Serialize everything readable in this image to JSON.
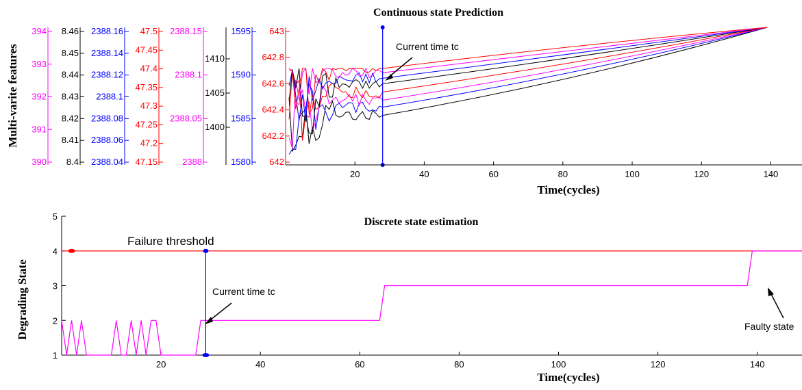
{
  "chart_data": [
    {
      "type": "line",
      "title": "Continuous state Prediction",
      "xlabel": "Time(cycles)",
      "ylabel": "Multi-varite features",
      "xlim": [
        0,
        149
      ],
      "x_ticks": [
        20,
        40,
        60,
        80,
        100,
        120,
        140
      ],
      "grid": false,
      "annotation": "Current time tc",
      "current_time": 28,
      "end_point": 139,
      "axes": [
        {
          "color": "#ff00ff",
          "ticks": [
            "394",
            "393",
            "392",
            "391",
            "390"
          ]
        },
        {
          "color": "#000000",
          "ticks": [
            "8.46",
            "8.45",
            "8.44",
            "8.43",
            "8.42",
            "8.41",
            "8.4"
          ]
        },
        {
          "color": "#0000ff",
          "ticks": [
            "2388.16",
            "2388.14",
            "2388.12",
            "2388.1",
            "2388.08",
            "2388.06",
            "2388.04"
          ]
        },
        {
          "color": "#ff0000",
          "ticks": [
            "47.5",
            "47.45",
            "47.4",
            "47.35",
            "47.3",
            "47.25",
            "47.2",
            "47.15"
          ]
        },
        {
          "color": "#ff00ff",
          "ticks": [
            "2388.15",
            "2388.1",
            "2388.05",
            "2388"
          ]
        },
        {
          "color": "#000000",
          "ticks": [
            "1410",
            "1405",
            "1400"
          ]
        },
        {
          "color": "#0000ff",
          "ticks": [
            "1595",
            "1590",
            "1585",
            "1580"
          ]
        },
        {
          "color": "#ff0000",
          "ticks": [
            "643",
            "642.8",
            "642.6",
            "642.4",
            "642.2",
            "642"
          ]
        }
      ],
      "series": [
        {
          "color": "#000000",
          "at_tc": 0.36
        },
        {
          "color": "#0000ff",
          "at_tc": 0.42
        },
        {
          "color": "#ff00ff",
          "at_tc": 0.47
        },
        {
          "color": "#ff0000",
          "at_tc": 0.53
        },
        {
          "color": "#000000",
          "at_tc": 0.59
        },
        {
          "color": "#0000ff",
          "at_tc": 0.63
        },
        {
          "color": "#ff00ff",
          "at_tc": 0.67
        },
        {
          "color": "#ff0000",
          "at_tc": 0.71
        }
      ]
    },
    {
      "type": "line",
      "title": "Discrete state estimation",
      "xlabel": "Time(cycles)",
      "ylabel": "Degrading State",
      "xlim": [
        0,
        149
      ],
      "ylim": [
        1,
        5
      ],
      "x_ticks": [
        20,
        40,
        60,
        80,
        100,
        120,
        140
      ],
      "y_ticks": [
        1,
        2,
        3,
        4,
        5
      ],
      "grid": false,
      "threshold": {
        "value": 4,
        "label": "Failure threshold",
        "color": "#ff0000"
      },
      "annotations": [
        "Current time tc",
        "Faulty state"
      ],
      "current_time": 29,
      "series": [
        {
          "name": "",
          "color": "#ff00ff",
          "x": [
            0,
            1,
            2,
            3,
            4,
            5,
            6,
            7,
            8,
            9,
            10,
            11,
            12,
            13,
            14,
            15,
            16,
            17,
            18,
            19,
            20,
            21,
            22,
            27,
            28,
            64,
            65,
            138,
            139,
            149
          ],
          "y": [
            2,
            1,
            2,
            1,
            2,
            1,
            1,
            1,
            1,
            1,
            1,
            2,
            1,
            1,
            2,
            1,
            2,
            1,
            2,
            2,
            1,
            1,
            1,
            1,
            2,
            2,
            3,
            3,
            4,
            4
          ]
        }
      ]
    }
  ]
}
